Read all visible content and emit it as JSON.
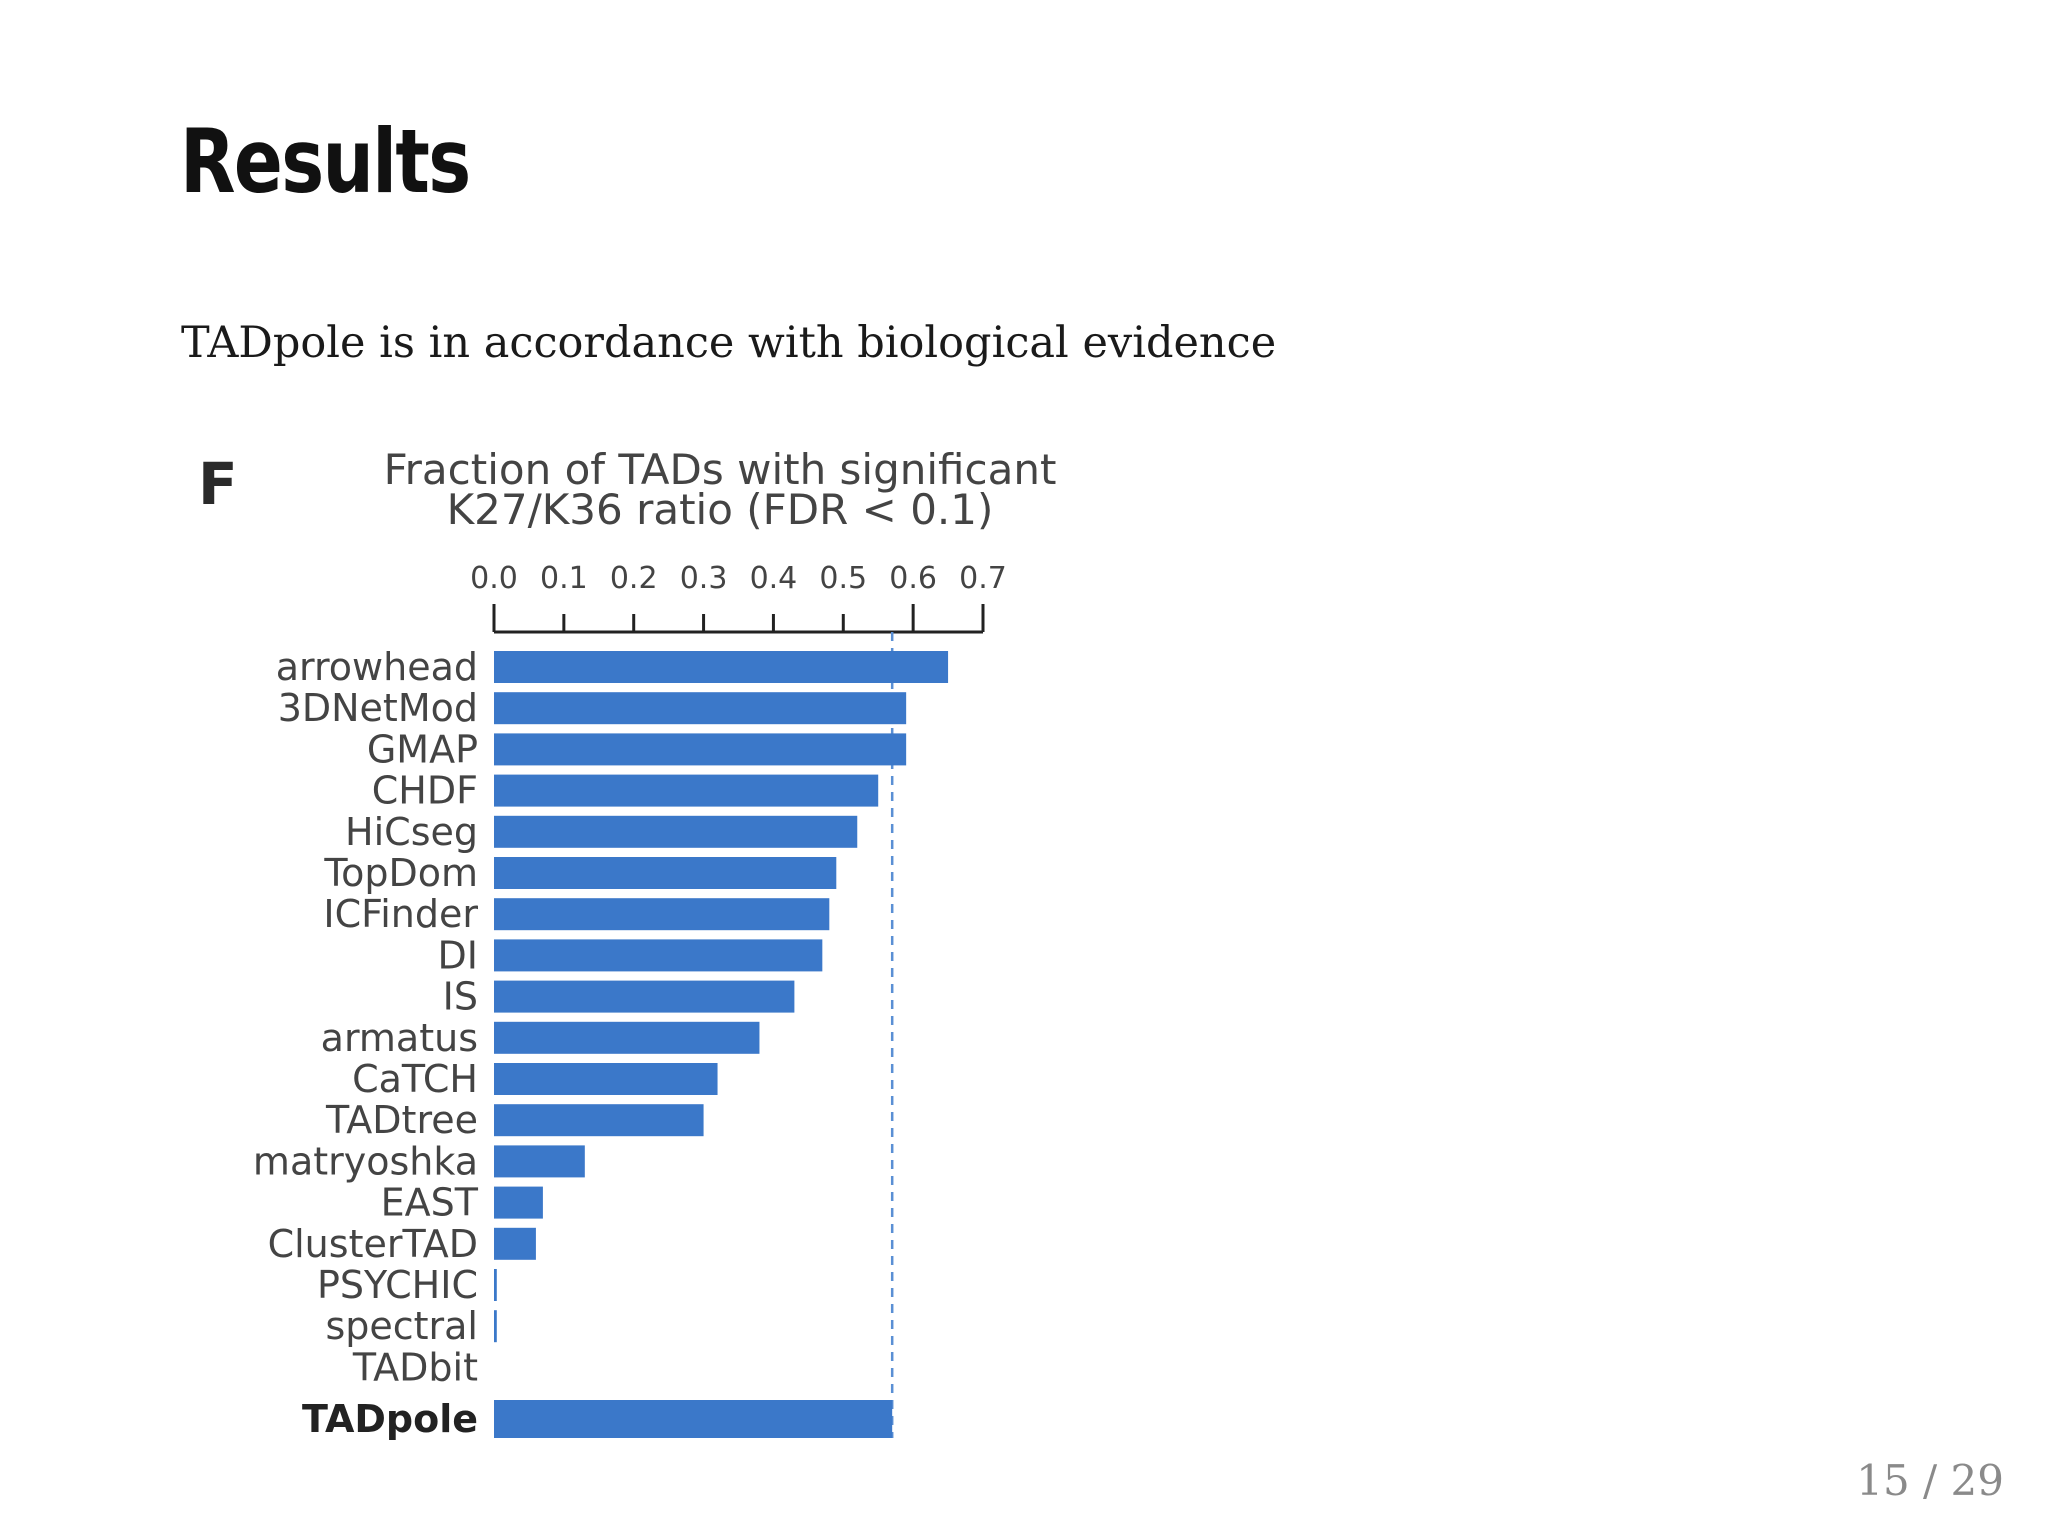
{
  "slide": {
    "title": "Results",
    "subtitle": "TADpole is in accordance with biological evidence",
    "page_number": "15 / 29"
  },
  "figure": {
    "panel_label": "F"
  },
  "chart_data": {
    "type": "bar",
    "orientation": "horizontal",
    "title_lines": [
      "Fraction of TADs with significant",
      "K27/K36 ratio (FDR < 0.1)"
    ],
    "xlabel": "",
    "ylabel": "",
    "xlim": [
      0,
      0.7
    ],
    "x_ticks": [
      "0.0",
      "0.1",
      "0.2",
      "0.3",
      "0.4",
      "0.5",
      "0.6",
      "0.7"
    ],
    "categories": [
      "arrowhead",
      "3DNetMod",
      "GMAP",
      "CHDF",
      "HiCseg",
      "TopDom",
      "ICFinder",
      "DI",
      "IS",
      "armatus",
      "CaTCH",
      "TADtree",
      "matryoshka",
      "EAST",
      "ClusterTAD",
      "PSYCHIC",
      "spectral",
      "TADbit",
      "TADpole"
    ],
    "values": [
      0.65,
      0.59,
      0.59,
      0.55,
      0.52,
      0.49,
      0.48,
      0.47,
      0.43,
      0.38,
      0.32,
      0.3,
      0.13,
      0.07,
      0.06,
      0.004,
      0.004,
      0.0,
      0.57
    ],
    "highlight_category": "TADpole",
    "reference_line_x": 0.57,
    "bar_color": "#3b78c9",
    "reference_line_color": "#5a8fd4",
    "grid": false
  }
}
